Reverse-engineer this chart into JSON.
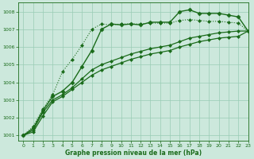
{
  "title": "Graphe pression niveau de la mer (hPa)",
  "xlim": [
    -0.5,
    23
  ],
  "ylim": [
    1000.7,
    1008.5
  ],
  "yticks": [
    1001,
    1002,
    1003,
    1004,
    1005,
    1006,
    1007,
    1008
  ],
  "xticks": [
    0,
    1,
    2,
    3,
    4,
    5,
    6,
    7,
    8,
    9,
    10,
    11,
    12,
    13,
    14,
    15,
    16,
    17,
    18,
    19,
    20,
    21,
    22,
    23
  ],
  "bg_color": "#cce8dc",
  "grid_color": "#99ccb5",
  "line_color": "#1a6b1a",
  "series": [
    {
      "x": [
        0,
        1,
        2,
        3,
        4,
        5,
        6,
        7,
        8,
        9,
        10,
        11,
        12,
        13,
        14,
        15,
        16,
        17,
        18,
        19,
        20,
        21,
        22,
        23
      ],
      "y": [
        1001.0,
        1001.5,
        1002.5,
        1003.3,
        1004.6,
        1005.3,
        1006.1,
        1007.0,
        1007.3,
        1007.25,
        1007.3,
        1007.3,
        1007.3,
        1007.35,
        1007.35,
        1007.35,
        1007.5,
        1007.55,
        1007.5,
        1007.45,
        1007.45,
        1007.4,
        1007.35,
        1006.9
      ],
      "marker": "D",
      "markersize": 2.0,
      "linewidth": 0.8,
      "linestyle": ":"
    },
    {
      "x": [
        0,
        1,
        2,
        3,
        4,
        5,
        6,
        7,
        8,
        9,
        10,
        11,
        12,
        13,
        14,
        15,
        16,
        17,
        18,
        19,
        20,
        21,
        22,
        23
      ],
      "y": [
        1001.0,
        1001.4,
        1002.4,
        1003.2,
        1003.5,
        1004.0,
        1004.9,
        1005.8,
        1007.0,
        1007.3,
        1007.25,
        1007.3,
        1007.25,
        1007.4,
        1007.4,
        1007.4,
        1008.0,
        1008.1,
        1007.9,
        1007.9,
        1007.9,
        1007.8,
        1007.7,
        1006.9
      ],
      "marker": "D",
      "markersize": 2.5,
      "linewidth": 1.0,
      "linestyle": "-"
    },
    {
      "x": [
        0,
        1,
        2,
        3,
        4,
        5,
        6,
        7,
        8,
        9,
        10,
        11,
        12,
        13,
        14,
        15,
        16,
        17,
        18,
        19,
        20,
        21,
        22,
        23
      ],
      "y": [
        1001.0,
        1001.3,
        1002.3,
        1003.0,
        1003.3,
        1003.7,
        1004.2,
        1004.7,
        1005.0,
        1005.2,
        1005.4,
        1005.6,
        1005.75,
        1005.9,
        1006.0,
        1006.1,
        1006.3,
        1006.5,
        1006.6,
        1006.7,
        1006.8,
        1006.85,
        1006.9,
        1006.9
      ],
      "marker": "D",
      "markersize": 2.0,
      "linewidth": 0.9,
      "linestyle": "-"
    },
    {
      "x": [
        0,
        1,
        2,
        3,
        4,
        5,
        6,
        7,
        8,
        9,
        10,
        11,
        12,
        13,
        14,
        15,
        16,
        17,
        18,
        19,
        20,
        21,
        22,
        23
      ],
      "y": [
        1001.0,
        1001.2,
        1002.1,
        1002.9,
        1003.2,
        1003.6,
        1004.0,
        1004.4,
        1004.7,
        1004.9,
        1005.1,
        1005.3,
        1005.45,
        1005.6,
        1005.7,
        1005.8,
        1006.0,
        1006.15,
        1006.3,
        1006.4,
        1006.5,
        1006.55,
        1006.6,
        1006.9
      ],
      "marker": "D",
      "markersize": 2.0,
      "linewidth": 0.9,
      "linestyle": "-"
    }
  ]
}
